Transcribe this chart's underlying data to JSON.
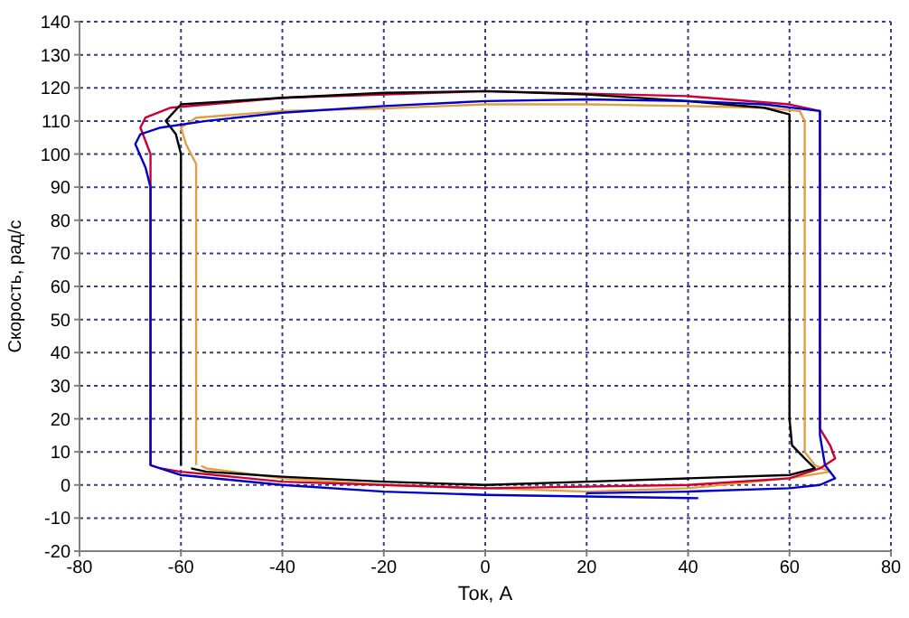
{
  "chart_data": {
    "type": "line",
    "xlabel": "Ток, А",
    "ylabel": "Скорость, рад/с",
    "xlim": [
      -80,
      80
    ],
    "xticks": [
      -80,
      -60,
      -40,
      -20,
      0,
      20,
      40,
      60,
      80
    ],
    "ylim": [
      -20,
      140
    ],
    "yticks": [
      -20,
      -10,
      0,
      10,
      20,
      30,
      40,
      50,
      60,
      70,
      80,
      90,
      100,
      110,
      120,
      130,
      140
    ],
    "grid": true,
    "marker": "none",
    "line_style": "solid",
    "legend": false,
    "series": [
      {
        "color": "#e0a040",
        "x": [
          -57,
          -57,
          -57,
          -59,
          -60,
          -57,
          -40,
          -20,
          0,
          20,
          40,
          55,
          62,
          63,
          63,
          65,
          68,
          60,
          40,
          20,
          0,
          -20,
          -40,
          -55,
          -56
        ],
        "values": [
          6,
          88,
          97,
          103,
          108,
          111,
          113,
          113.8,
          115,
          115,
          114.5,
          114,
          113,
          110,
          10,
          6,
          4,
          2,
          -1,
          -2,
          -1,
          0,
          2,
          5,
          5.8
        ]
      },
      {
        "color": "#cc0033",
        "x": [
          -66,
          -66,
          -66,
          -68,
          -67,
          -62,
          -40,
          0,
          40,
          60,
          66,
          66,
          68,
          69,
          66,
          60,
          40,
          0,
          -40,
          -60,
          -64
        ],
        "values": [
          6,
          88,
          100,
          108,
          111,
          114,
          117,
          119,
          117.5,
          115,
          113,
          17,
          12,
          8,
          5,
          2,
          0,
          -1,
          1,
          4,
          5
        ]
      },
      {
        "color": "#000000",
        "x": [
          -60,
          -60,
          -61,
          -63,
          -60,
          -40,
          -20,
          0,
          20,
          40,
          55,
          60,
          60,
          60.5,
          63,
          65,
          60,
          40,
          20,
          0,
          -20,
          -40,
          -55,
          -58
        ],
        "values": [
          6,
          100,
          106,
          110,
          115,
          117,
          118.5,
          119,
          118,
          116,
          114,
          112,
          20,
          12,
          8,
          5,
          3,
          2,
          1,
          0,
          1,
          2.5,
          4,
          5
        ]
      },
      {
        "color": "#0000cc",
        "x": [
          42,
          20,
          0,
          -20,
          -40,
          -60,
          -66,
          -66,
          -67,
          -69,
          -68,
          -64,
          -55,
          -40,
          -20,
          0,
          20,
          40,
          55,
          66,
          66,
          67,
          69,
          66,
          60,
          40,
          20
        ],
        "values": [
          -4,
          -3.5,
          -3,
          -2,
          0,
          3,
          6,
          90,
          96,
          103,
          106,
          108,
          110,
          112.5,
          114.5,
          116,
          116.5,
          116,
          115,
          113,
          15,
          6,
          2,
          0,
          -1,
          -2,
          -2.5
        ]
      }
    ]
  }
}
